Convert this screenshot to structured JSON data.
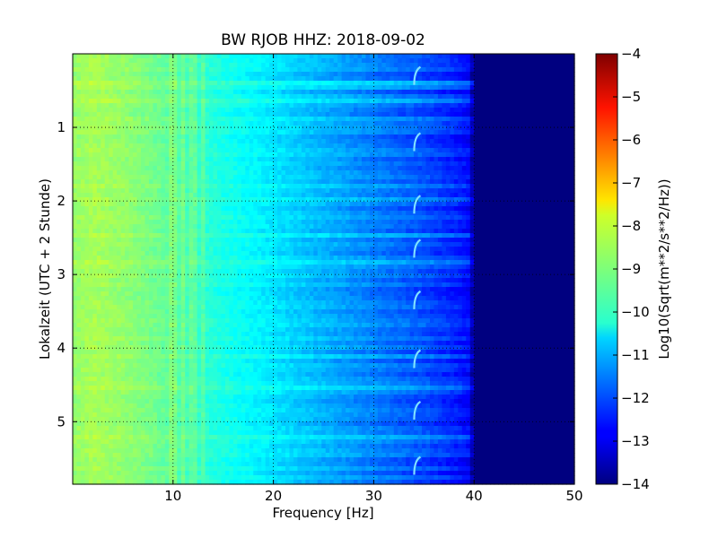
{
  "chart_data": {
    "type": "heatmap",
    "title": "BW RJOB HHZ: 2018-09-02",
    "xlabel": "Frequency [Hz]",
    "ylabel": "Lokalzeit (UTC + 2 Stunde)",
    "xlim": [
      0,
      50
    ],
    "ylim": [
      0,
      5.85
    ],
    "y_inverted": true,
    "xticks": [
      10,
      20,
      30,
      40,
      50
    ],
    "yticks": [
      1,
      2,
      3,
      4,
      5
    ],
    "grid": true,
    "colorbar": {
      "label": "Log10(Sqrt(m**2/s**2/Hz))",
      "min": -14,
      "max": -4,
      "ticks": [
        -14,
        -13,
        -12,
        -11,
        -10,
        -9,
        -8,
        -7,
        -6,
        -5,
        -4
      ],
      "colormap": "jet"
    },
    "spectral_profile": {
      "frequency_hz": [
        0,
        2,
        5,
        8,
        11,
        14,
        17,
        20,
        23,
        26,
        29,
        32,
        35,
        38,
        39.5,
        40,
        50
      ],
      "log10_amplitude": [
        -8.8,
        -8.6,
        -8.8,
        -9.1,
        -9.5,
        -9.9,
        -10.2,
        -10.5,
        -10.8,
        -11.1,
        -11.4,
        -11.7,
        -12.0,
        -12.4,
        -12.7,
        -14,
        -14
      ]
    },
    "features": [
      {
        "type": "cutoff",
        "frequency_hz": 40,
        "value": -14
      },
      {
        "type": "harmonic_lines",
        "frequencies_hz": [
          10,
          11,
          12,
          13
        ]
      },
      {
        "type": "recurring_tone",
        "frequency_hz": 34.3,
        "times_h": [
          0.3,
          1.2,
          2.05,
          2.65,
          3.35,
          4.15,
          4.85,
          5.6
        ]
      }
    ]
  }
}
